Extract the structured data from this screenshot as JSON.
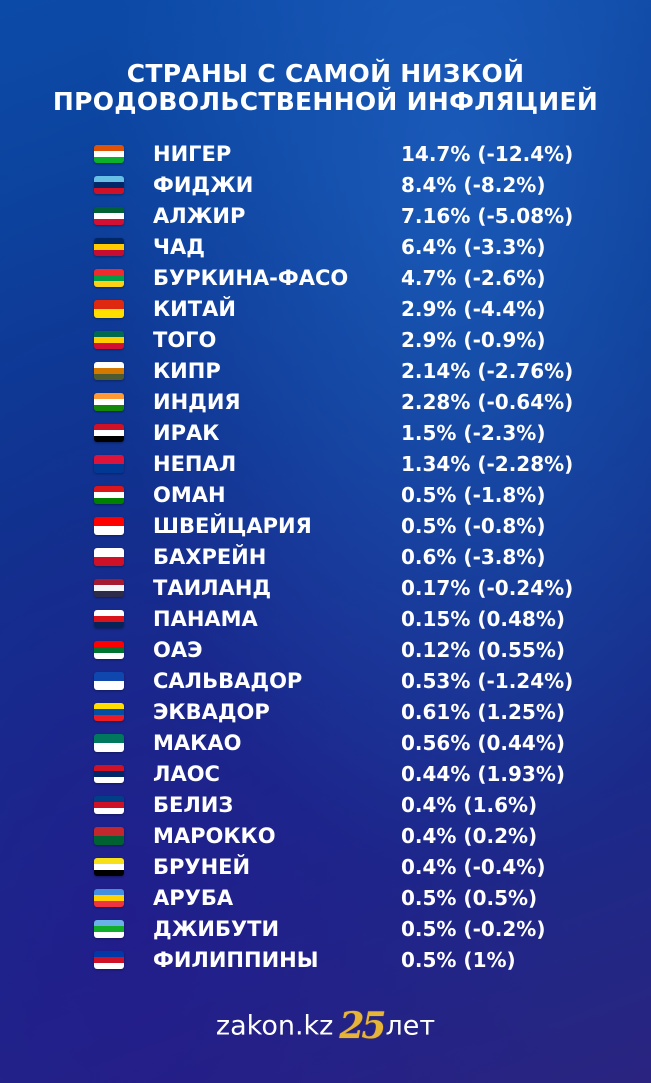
{
  "title": {
    "line1": "СТРАНЫ С САМОЙ НИЗКОЙ",
    "line2": "ПРОДОВОЛЬСТВЕННОЙ ИНФЛЯЦИЕЙ"
  },
  "rows": [
    {
      "country": "НИГЕР",
      "value": "14.7% (-12.4%)",
      "flag": "niger-flag-icon",
      "colors": [
        "#e05206",
        "#ffffff",
        "#0db02b"
      ]
    },
    {
      "country": "ФИДЖИ",
      "value": "8.4% (-8.2%)",
      "flag": "fiji-flag-icon",
      "colors": [
        "#68bfe5",
        "#002868",
        "#ce1126"
      ]
    },
    {
      "country": "АЛЖИР",
      "value": "7.16% (-5.08%)",
      "flag": "algeria-flag-icon",
      "colors": [
        "#006233",
        "#ffffff",
        "#d21034"
      ]
    },
    {
      "country": "ЧАД",
      "value": "6.4% (-3.3%)",
      "flag": "chad-flag-icon",
      "colors": [
        "#002664",
        "#fecb00",
        "#c60c30"
      ]
    },
    {
      "country": "БУРКИНА-ФАСО",
      "value": "4.7% (-2.6%)",
      "flag": "burkina-faso-flag-icon",
      "colors": [
        "#ef2b2d",
        "#009e49",
        "#fcd116"
      ]
    },
    {
      "country": "КИТАЙ",
      "value": "2.9% (-4.4%)",
      "flag": "china-flag-icon",
      "colors": [
        "#de2910",
        "#ffde00"
      ]
    },
    {
      "country": "ТОГО",
      "value": "2.9% (-0.9%)",
      "flag": "togo-flag-icon",
      "colors": [
        "#006a4e",
        "#ffce00",
        "#d21034"
      ]
    },
    {
      "country": "КИПР",
      "value": "2.14% (-2.76%)",
      "flag": "cyprus-flag-icon",
      "colors": [
        "#ffffff",
        "#d57800",
        "#4e5b31"
      ]
    },
    {
      "country": "ИНДИЯ",
      "value": "2.28% (-0.64%)",
      "flag": "india-flag-icon",
      "colors": [
        "#ff9933",
        "#ffffff",
        "#138808"
      ]
    },
    {
      "country": "ИРАК",
      "value": "1.5% (-2.3%)",
      "flag": "iraq-flag-icon",
      "colors": [
        "#ce1126",
        "#ffffff",
        "#000000"
      ]
    },
    {
      "country": "НЕПАЛ",
      "value": "1.34% (-2.28%)",
      "flag": "nepal-flag-icon",
      "colors": [
        "#dc143c",
        "#003893"
      ]
    },
    {
      "country": "ОМАН",
      "value": "0.5% (-1.8%)",
      "flag": "oman-flag-icon",
      "colors": [
        "#db161b",
        "#ffffff",
        "#008000"
      ]
    },
    {
      "country": "ШВЕЙЦАРИЯ",
      "value": "0.5% (-0.8%)",
      "flag": "switzerland-flag-icon",
      "colors": [
        "#ff0000",
        "#ffffff"
      ]
    },
    {
      "country": "БАХРЕЙН",
      "value": "0.6% (-3.8%)",
      "flag": "bahrain-flag-icon",
      "colors": [
        "#ffffff",
        "#ce1126"
      ]
    },
    {
      "country": "ТАИЛАНД",
      "value": "0.17% (-0.24%)",
      "flag": "thailand-flag-icon",
      "colors": [
        "#a51931",
        "#f4f5f8",
        "#2d2a4a"
      ]
    },
    {
      "country": "ПАНАМА",
      "value": "0.15% (0.48%)",
      "flag": "panama-flag-icon",
      "colors": [
        "#ffffff",
        "#da121a",
        "#072357"
      ]
    },
    {
      "country": "ОАЭ",
      "value": "0.12% (0.55%)",
      "flag": "uae-flag-icon",
      "colors": [
        "#ff0000",
        "#00732f",
        "#ffffff",
        "#000000"
      ]
    },
    {
      "country": "САЛЬВАДОР",
      "value": "0.53% (-1.24%)",
      "flag": "el-salvador-flag-icon",
      "colors": [
        "#0f47af",
        "#ffffff"
      ]
    },
    {
      "country": "ЭКВАДОР",
      "value": "0.61% (1.25%)",
      "flag": "ecuador-flag-icon",
      "colors": [
        "#ffdd00",
        "#034ea2",
        "#ed1c24"
      ]
    },
    {
      "country": "МАКАО",
      "value": "0.56% (0.44%)",
      "flag": "macau-flag-icon",
      "colors": [
        "#00785e",
        "#ffffff"
      ]
    },
    {
      "country": "ЛАОС",
      "value": "0.44% (1.93%)",
      "flag": "laos-flag-icon",
      "colors": [
        "#ce1126",
        "#002868",
        "#ffffff"
      ]
    },
    {
      "country": "БЕЛИЗ",
      "value": "0.4% (1.6%)",
      "flag": "belize-flag-icon",
      "colors": [
        "#003f87",
        "#ce1126",
        "#ffffff"
      ]
    },
    {
      "country": "МАРОККО",
      "value": "0.4% (0.2%)",
      "flag": "morocco-flag-icon",
      "colors": [
        "#c1272d",
        "#006233"
      ]
    },
    {
      "country": "БРУНЕЙ",
      "value": "0.4% (-0.4%)",
      "flag": "brunei-flag-icon",
      "colors": [
        "#f7e017",
        "#ffffff",
        "#000000",
        "#cf1126"
      ]
    },
    {
      "country": "АРУБА",
      "value": "0.5% (0.5%)",
      "flag": "aruba-flag-icon",
      "colors": [
        "#418fde",
        "#ffd100",
        "#ef3340"
      ]
    },
    {
      "country": "ДЖИБУТИ",
      "value": "0.5% (-0.2%)",
      "flag": "djibouti-flag-icon",
      "colors": [
        "#6ab2e7",
        "#12ad2b",
        "#ffffff",
        "#d7141a"
      ]
    },
    {
      "country": "ФИЛИППИНЫ",
      "value": "0.5% (1%)",
      "flag": "philippines-flag-icon",
      "colors": [
        "#0038a8",
        "#ce1126",
        "#ffffff",
        "#fcd116"
      ]
    }
  ],
  "footer": {
    "site": "zakon.kz",
    "number": "25",
    "suffix": "лет"
  }
}
